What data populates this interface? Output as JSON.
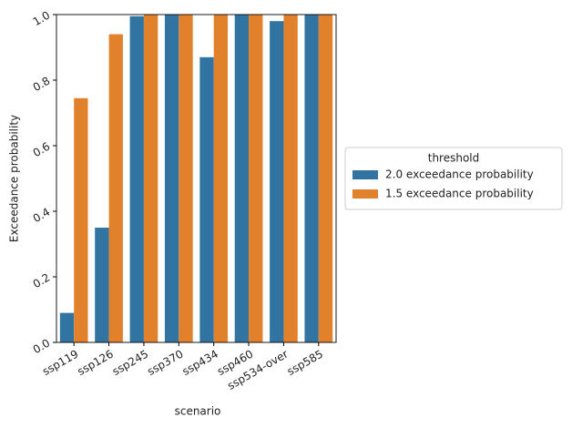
{
  "chart_data": {
    "type": "bar",
    "x_label": "scenario",
    "y_label": "Exceedance probability",
    "categories": [
      "ssp119",
      "ssp126",
      "ssp245",
      "ssp370",
      "ssp434",
      "ssp460",
      "ssp534-over",
      "ssp585"
    ],
    "series": [
      {
        "name": "2.0 exceedance probability",
        "color": "#3274a1",
        "values": [
          0.09,
          0.35,
          0.995,
          1.0,
          0.87,
          1.0,
          0.98,
          1.0
        ]
      },
      {
        "name": "1.5 exceedance probability",
        "color": "#e1812c",
        "values": [
          0.745,
          0.94,
          1.0,
          1.0,
          1.0,
          1.0,
          1.0,
          1.0
        ]
      }
    ],
    "ylim": [
      0,
      1.0
    ],
    "yticks": [
      {
        "value": 0,
        "label": "0.0"
      },
      0.2,
      0.4,
      0.6,
      0.8,
      {
        "value": 1,
        "label": "1.0"
      }
    ],
    "legend_title": "threshold",
    "legend": "right"
  }
}
